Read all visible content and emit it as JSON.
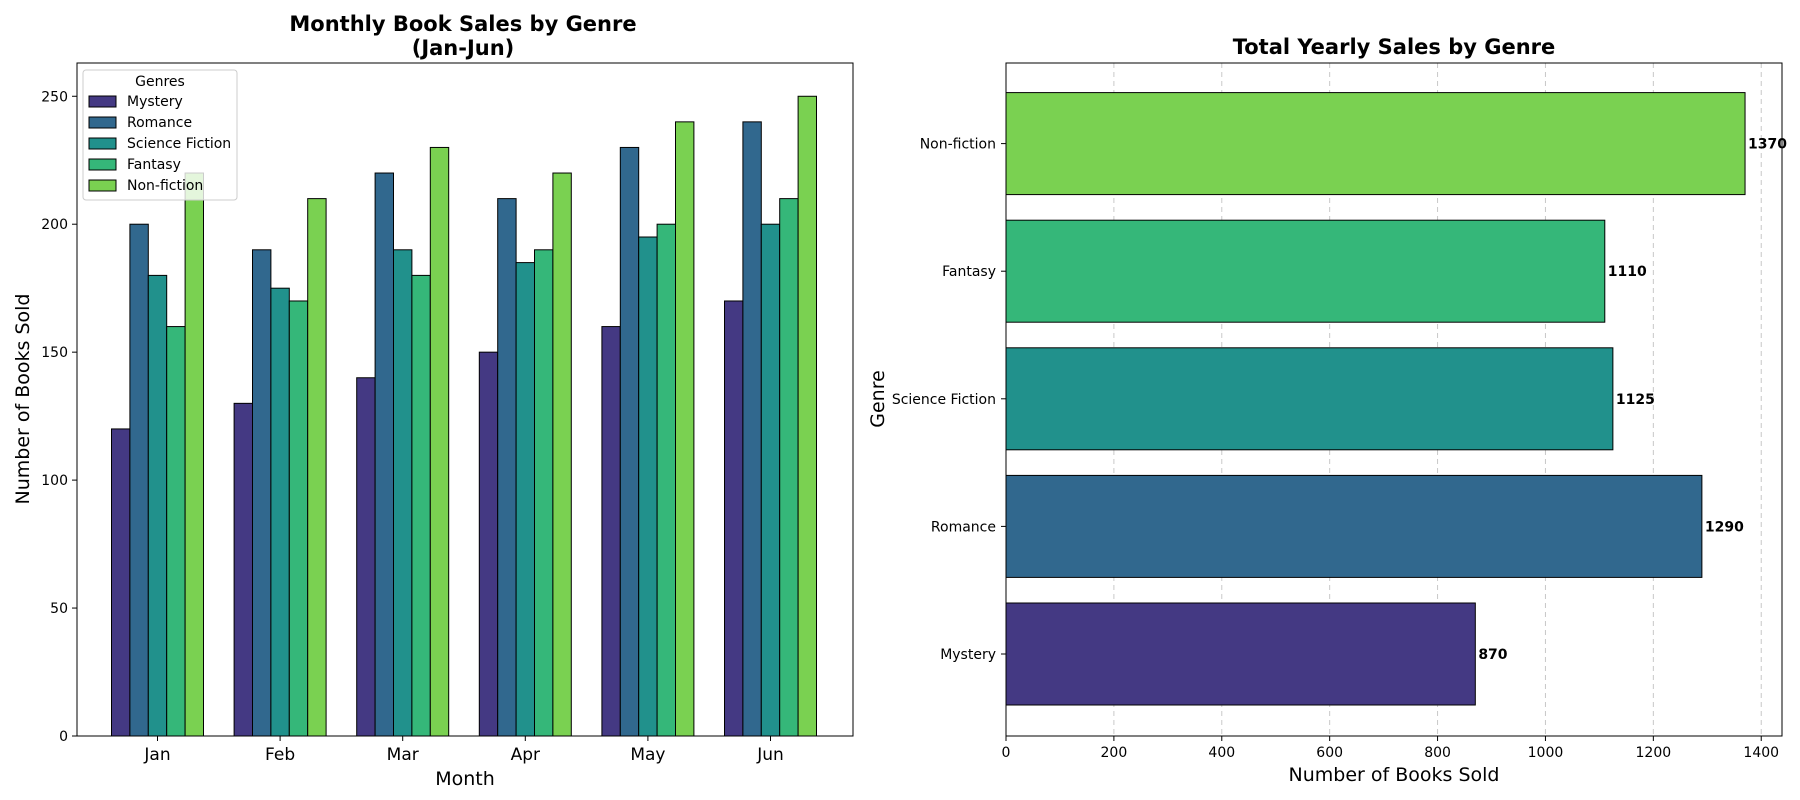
{
  "chart_data": [
    {
      "type": "bar",
      "title": "Monthly Book Sales by Genre\n(Jan-Jun)",
      "title_lines": [
        "Monthly Book Sales by Genre",
        "(Jan-Jun)"
      ],
      "xlabel": "Month",
      "ylabel": "Number of Books Sold",
      "categories": [
        "Jan",
        "Feb",
        "Mar",
        "Apr",
        "May",
        "Jun"
      ],
      "ylim": [
        0,
        263
      ],
      "yticks": [
        0,
        50,
        100,
        150,
        200,
        250
      ],
      "grid": false,
      "legend": {
        "title": "Genres",
        "placement": "top-left"
      },
      "series": [
        {
          "name": "Mystery",
          "color": "#443983",
          "values": [
            120,
            130,
            140,
            150,
            160,
            170
          ]
        },
        {
          "name": "Romance",
          "color": "#31688e",
          "values": [
            200,
            190,
            220,
            210,
            230,
            240
          ]
        },
        {
          "name": "Science Fiction",
          "color": "#21918c",
          "values": [
            180,
            175,
            190,
            185,
            195,
            200
          ]
        },
        {
          "name": "Fantasy",
          "color": "#35b779",
          "values": [
            160,
            170,
            180,
            190,
            200,
            210
          ]
        },
        {
          "name": "Non-fiction",
          "color": "#7ad151",
          "values": [
            220,
            210,
            230,
            220,
            240,
            250
          ]
        }
      ]
    },
    {
      "type": "bar",
      "orientation": "horizontal",
      "title": "Total Yearly Sales by Genre",
      "xlabel": "Number of Books Sold",
      "ylabel": "Genre",
      "categories": [
        "Mystery",
        "Romance",
        "Science Fiction",
        "Fantasy",
        "Non-fiction"
      ],
      "values": [
        870,
        1290,
        1125,
        1110,
        1370
      ],
      "colors": [
        "#443983",
        "#31688e",
        "#21918c",
        "#35b779",
        "#7ad151"
      ],
      "xlim": [
        0,
        1438.5
      ],
      "xticks": [
        0,
        200,
        400,
        600,
        800,
        1000,
        1200,
        1400
      ],
      "grid": "x-dashed"
    }
  ]
}
